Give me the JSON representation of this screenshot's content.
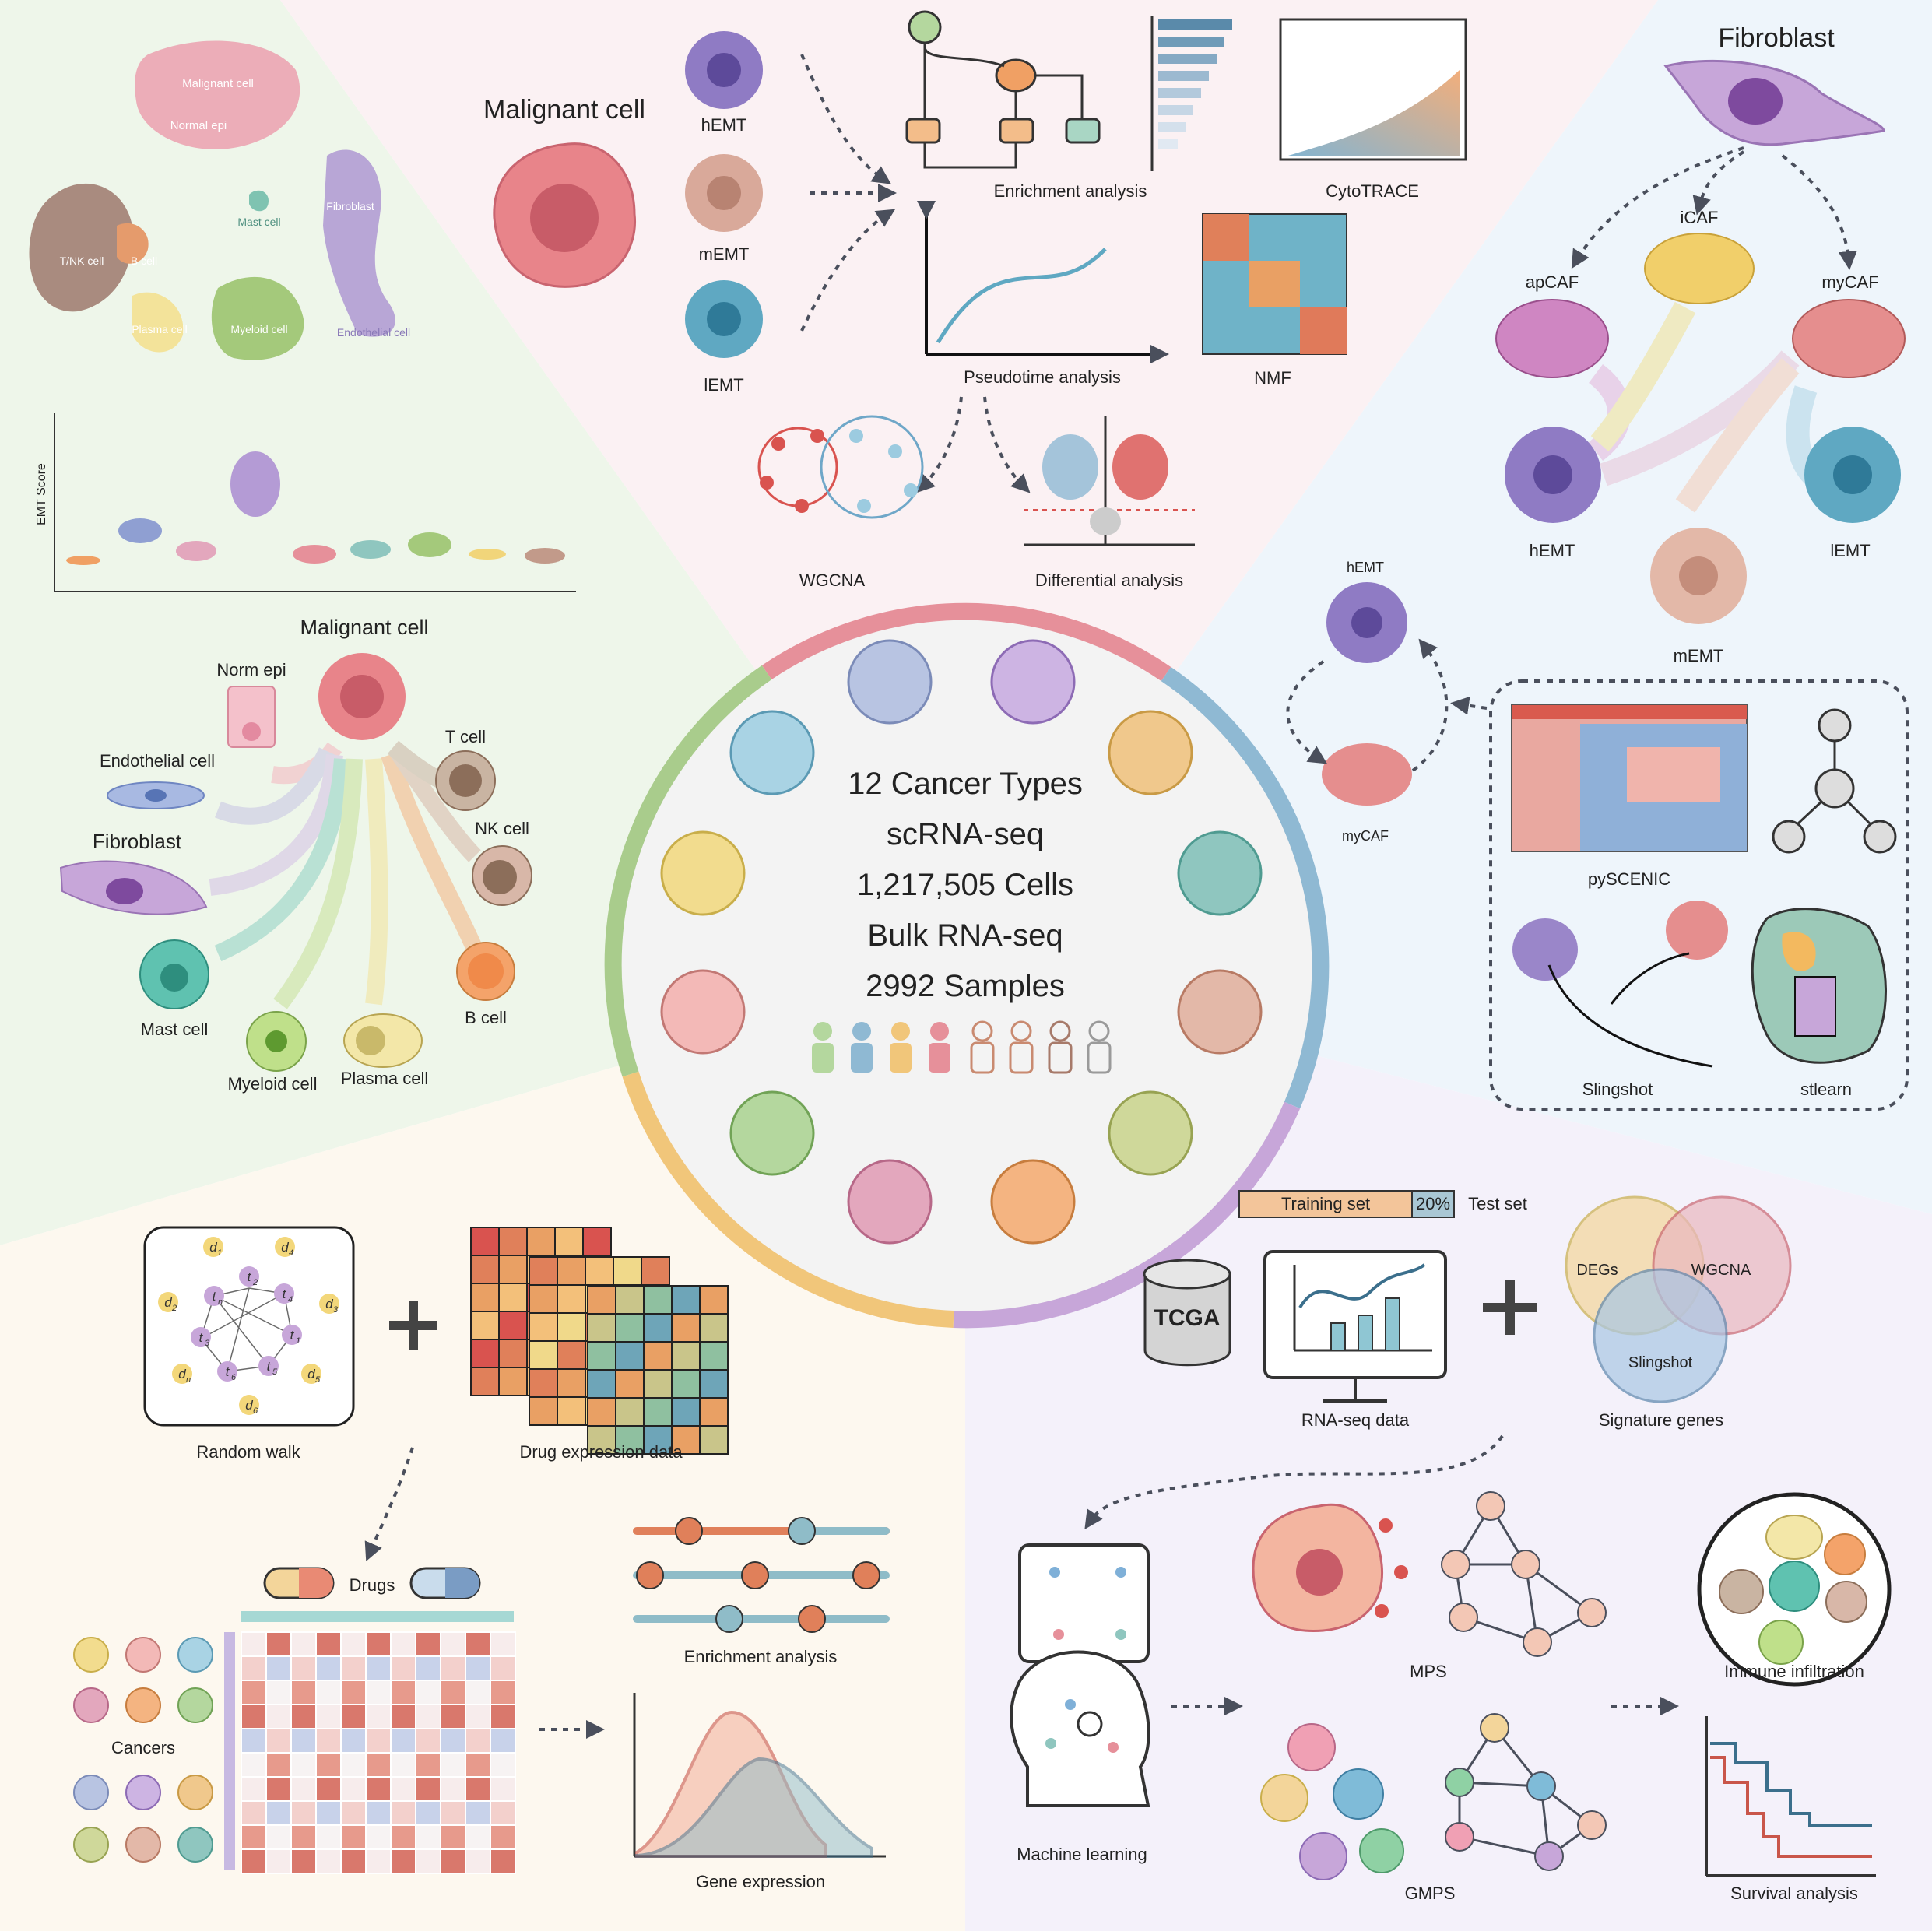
{
  "center": {
    "lines": [
      "12 Cancer Types",
      "scRNA-seq",
      "1,217,505 Cells",
      "Bulk RNA-seq",
      "2992 Samples"
    ]
  },
  "top_left": {
    "umap_labels": [
      "Malignant cell",
      "Normal epi",
      "Mast cell",
      "Fibroblast",
      "T/NK cell",
      "B cell",
      "Plasma cell",
      "Myeloid cell",
      "Endothelial cell"
    ],
    "violin_ylabel": "EMT Score",
    "network_center": "Malignant cell",
    "network_cells": [
      "Norm epi",
      "Endothelial cell",
      "Fibroblast",
      "T cell",
      "NK cell",
      "B cell",
      "Mast cell",
      "Myeloid cell",
      "Plasma cell"
    ]
  },
  "top_middle": {
    "malignant": "Malignant cell",
    "states": [
      "hEMT",
      "mEMT",
      "lEMT"
    ],
    "analyses": [
      "Enrichment analysis",
      "CytoTRACE",
      "Pseudotime analysis",
      "NMF",
      "WGCNA",
      "Differential analysis"
    ]
  },
  "top_right": {
    "fibroblast": "Fibroblast",
    "cafs": [
      "iCAF",
      "apCAF",
      "myCAF"
    ],
    "states": [
      "hEMT",
      "lEMT",
      "mEMT"
    ],
    "loop_labels": [
      "hEMT",
      "myCAF"
    ],
    "tools": [
      "pySCENIC",
      "Slingshot",
      "stlearn"
    ]
  },
  "bottom_left": {
    "random_walk": "Random walk",
    "drug_data": "Drug expression data",
    "drugs": "Drugs",
    "cancers": "Cancers",
    "enrichment": "Enrichment analysis",
    "gene_expression": "Gene expression",
    "nodes_t": [
      "t",
      "t",
      "t",
      "t",
      "t",
      "t",
      "t"
    ],
    "nodes_d": [
      "d",
      "d",
      "d",
      "d",
      "d",
      "d",
      "d"
    ],
    "subs_t": [
      "2",
      "n",
      "4",
      "3",
      "1",
      "6",
      "5"
    ],
    "subs_d": [
      "1",
      "4",
      "2",
      "3",
      "n",
      "5",
      "6"
    ]
  },
  "bottom_right": {
    "training": "Training set",
    "pct": "20%",
    "test": "Test set",
    "tcga": "TCGA",
    "rnaseq": "RNA-seq data",
    "venn": [
      "DEGs",
      "WGCNA",
      "Slingshot"
    ],
    "signature": "Signature genes",
    "ml": "Machine learning",
    "mps": "MPS",
    "gmps": "GMPS",
    "immune": "Immune infiltration",
    "survival": "Survival analysis"
  },
  "colors": {
    "malignant": "#e8848a",
    "fibroblast": "#c7a6d9",
    "hEMT": "#8f7bc4",
    "mEMT": "#d9a99a",
    "lEMT": "#5fa8c2"
  }
}
